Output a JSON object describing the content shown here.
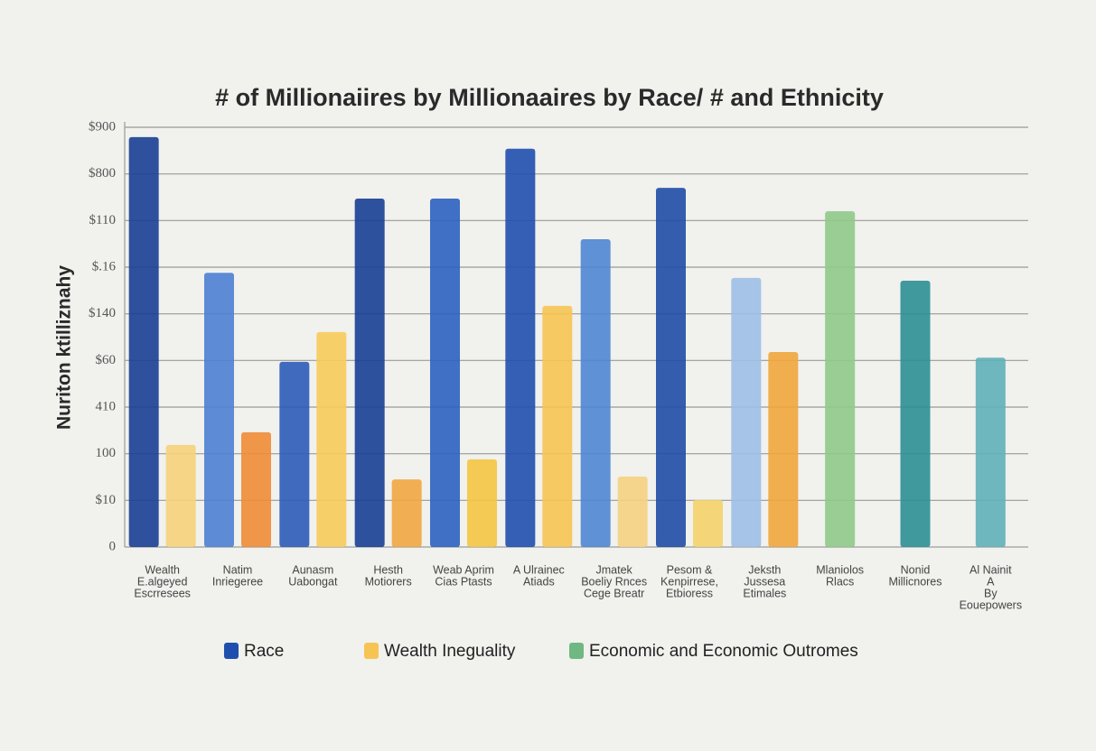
{
  "chart_data": {
    "type": "bar",
    "title": "# of Millionaiires by Millionaaires by Race/ # and Ethnicity",
    "y_label": "Nuriton ktilliznahy",
    "categories": [
      [
        "Wealth",
        "E.algeyed",
        "Escrresees"
      ],
      [
        "Natim",
        "Inriegeree"
      ],
      [
        "Aunasm",
        "Uabongat"
      ],
      [
        "Hesth",
        "Motiorers"
      ],
      [
        "Weab Aprim",
        "Cias Ptasts"
      ],
      [
        "A Ulrainec",
        "Atiads"
      ],
      [
        "Jmatek",
        "Boeliy Rnces",
        "Cege Breatr"
      ],
      [
        "Pesom &",
        "Kenpirrese,",
        "Etbioress"
      ],
      [
        "Jeksth",
        "Jussesa",
        "Etimales"
      ],
      [
        "Mlaniolos",
        "Rlacs"
      ],
      [
        "Nonid",
        "Millicnores"
      ],
      [
        "Al Nainit",
        "A",
        "By",
        "Eouepowers"
      ]
    ],
    "series": [
      {
        "name": "Race",
        "color": "#1f4fae",
        "values": [
          879,
          588,
          397,
          747,
          747,
          854,
          660,
          770,
          577,
          null,
          null,
          null
        ],
        "colors": [
          "#1a3f94",
          "#4d7fd1",
          "#2c5bb8",
          "#183f94",
          "#2b62c0",
          "#1f4fae",
          "#4e86d1",
          "#1f4da6",
          "#9dbfe6",
          null,
          null,
          null
        ]
      },
      {
        "name": "Wealth Ineguality",
        "color": "#f6c452",
        "values": [
          219,
          246,
          461,
          145,
          188,
          517,
          151,
          101,
          418,
          null,
          null,
          null
        ],
        "colors": [
          "#f6d27a",
          "#ef8c35",
          "#f7cb5a",
          "#f2a640",
          "#f4c542",
          "#f6c452",
          "#f5d17f",
          "#f4d36a",
          "#f0a63c",
          null,
          null,
          null
        ]
      },
      {
        "name": "Economic and Economic Outromes",
        "color": "#6fb882",
        "values": [
          null,
          null,
          null,
          null,
          null,
          null,
          null,
          null,
          null,
          720,
          571,
          406
        ],
        "colors": [
          null,
          null,
          null,
          null,
          null,
          null,
          null,
          null,
          null,
          "#8fc98a",
          "#2b8f94",
          "#5fb0b8"
        ]
      }
    ],
    "ylim": [
      0,
      900
    ],
    "yticks": [
      0,
      {
        "value": 100,
        "label": "$10"
      },
      {
        "value": 200,
        "label": "100"
      },
      {
        "value": 300,
        "label": "410"
      },
      {
        "value": 400,
        "label": "$60"
      },
      {
        "value": 500,
        "label": "$140"
      },
      {
        "value": 600,
        "label": "$.16"
      },
      {
        "value": 700,
        "label": "$110"
      },
      {
        "value": 800,
        "label": "$800"
      },
      {
        "value": 900,
        "label": "$900"
      }
    ],
    "grid": true
  }
}
